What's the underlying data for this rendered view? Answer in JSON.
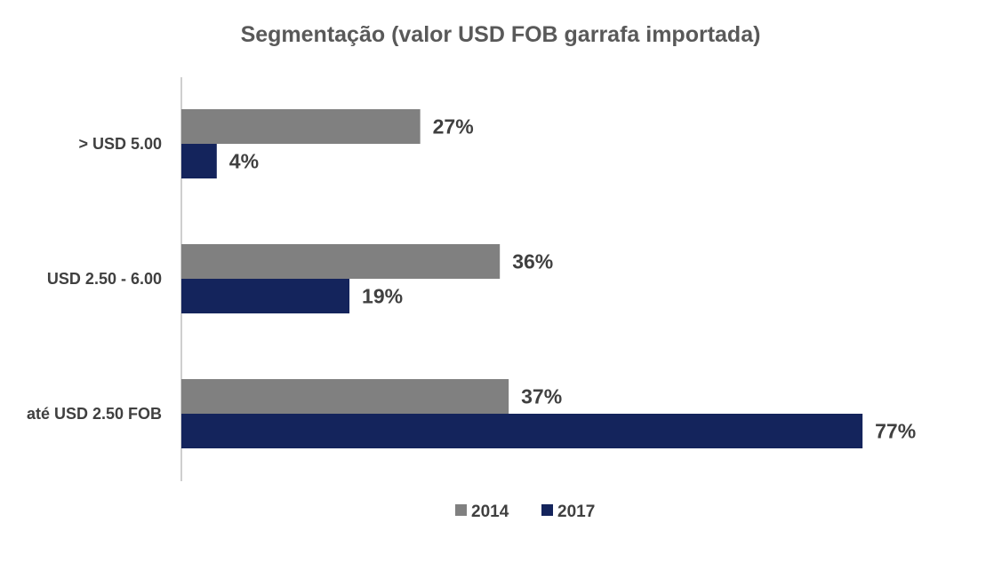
{
  "chart_data": {
    "type": "bar",
    "orientation": "horizontal",
    "title": "Segmentação (valor USD FOB garrafa importada)",
    "categories": [
      "> USD 5.00",
      "USD 2.50 - 6.00",
      "até USD 2.50 FOB"
    ],
    "series": [
      {
        "name": "2014",
        "values": [
          27,
          36,
          37
        ],
        "labels": [
          "27%",
          "36%",
          "37%"
        ],
        "color": "#808080"
      },
      {
        "name": "2017",
        "values": [
          4,
          19,
          77
        ],
        "labels": [
          "4%",
          "19%",
          "77%"
        ],
        "color": "#14245c"
      }
    ],
    "value_unit": "%",
    "xlim": [
      0,
      100
    ],
    "grid": false,
    "legend_position": "bottom"
  }
}
